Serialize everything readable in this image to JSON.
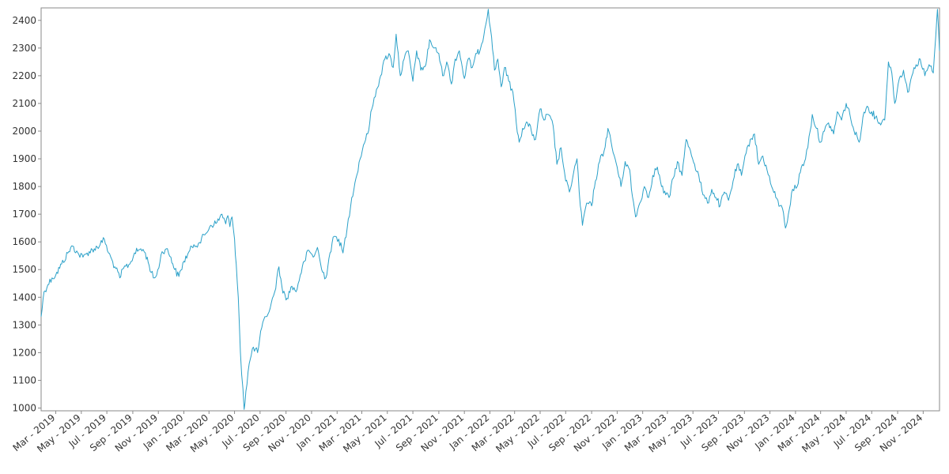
{
  "chart_data": {
    "type": "line",
    "title": "",
    "xlabel": "",
    "ylabel": "",
    "x_axis": {
      "type": "date",
      "range": [
        "2019-01-25",
        "2024-12-10"
      ],
      "tick_dates": [
        "2019-03-01",
        "2019-05-01",
        "2019-07-01",
        "2019-09-01",
        "2019-11-01",
        "2020-01-01",
        "2020-03-01",
        "2020-05-01",
        "2020-07-01",
        "2020-09-01",
        "2020-11-01",
        "2021-01-01",
        "2021-03-01",
        "2021-05-01",
        "2021-07-01",
        "2021-09-01",
        "2021-11-01",
        "2022-01-01",
        "2022-03-01",
        "2022-05-01",
        "2022-07-01",
        "2022-09-01",
        "2022-11-01",
        "2023-01-01",
        "2023-03-01",
        "2023-05-01",
        "2023-07-01",
        "2023-09-01",
        "2023-11-01",
        "2024-01-01",
        "2024-03-01",
        "2024-05-01",
        "2024-07-01",
        "2024-09-01",
        "2024-11-01"
      ],
      "tick_labels": [
        "Mar - 2019",
        "May - 2019",
        "Jul - 2019",
        "Sep - 2019",
        "Nov - 2019",
        "Jan - 2020",
        "Mar - 2020",
        "May - 2020",
        "Jul - 2020",
        "Sep - 2020",
        "Nov - 2020",
        "Jan - 2021",
        "Mar - 2021",
        "May - 2021",
        "Jul - 2021",
        "Sep - 2021",
        "Nov - 2021",
        "Jan - 2022",
        "Mar - 2022",
        "May - 2022",
        "Jul - 2022",
        "Sep - 2022",
        "Nov - 2022",
        "Jan - 2023",
        "Mar - 2023",
        "May - 2023",
        "Jul - 2023",
        "Sep - 2023",
        "Nov - 2023",
        "Jan - 2024",
        "Mar - 2024",
        "May - 2024",
        "Jul - 2024",
        "Sep - 2024",
        "Nov - 2024"
      ]
    },
    "y_axis": {
      "range": [
        990,
        2445
      ],
      "ticks": [
        1000,
        1100,
        1200,
        1300,
        1400,
        1500,
        1600,
        1700,
        1800,
        1900,
        2000,
        2100,
        2200,
        2300,
        2400
      ],
      "tick_labels": [
        "1000",
        "1100",
        "1200",
        "1300",
        "1400",
        "1500",
        "1600",
        "1700",
        "1800",
        "1900",
        "2000",
        "2100",
        "2200",
        "2300",
        "2400"
      ]
    },
    "grid": false,
    "legend": "none",
    "line_color": "#2aa0c8",
    "series": [
      {
        "points": [
          [
            "2019-01-25",
            1330
          ],
          [
            "2019-02-01",
            1420
          ],
          [
            "2019-02-10",
            1445
          ],
          [
            "2019-02-20",
            1470
          ],
          [
            "2019-03-01",
            1480
          ],
          [
            "2019-03-15",
            1520
          ],
          [
            "2019-04-01",
            1565
          ],
          [
            "2019-04-10",
            1585
          ],
          [
            "2019-04-25",
            1555
          ],
          [
            "2019-05-05",
            1545
          ],
          [
            "2019-05-15",
            1560
          ],
          [
            "2019-06-01",
            1575
          ],
          [
            "2019-06-15",
            1590
          ],
          [
            "2019-06-25",
            1610
          ],
          [
            "2019-07-05",
            1560
          ],
          [
            "2019-07-20",
            1510
          ],
          [
            "2019-08-01",
            1470
          ],
          [
            "2019-08-10",
            1505
          ],
          [
            "2019-08-25",
            1520
          ],
          [
            "2019-09-05",
            1560
          ],
          [
            "2019-09-20",
            1575
          ],
          [
            "2019-10-01",
            1560
          ],
          [
            "2019-10-10",
            1515
          ],
          [
            "2019-10-20",
            1470
          ],
          [
            "2019-10-28",
            1480
          ],
          [
            "2019-11-10",
            1565
          ],
          [
            "2019-11-20",
            1575
          ],
          [
            "2019-12-01",
            1545
          ],
          [
            "2019-12-10",
            1500
          ],
          [
            "2019-12-20",
            1475
          ],
          [
            "2020-01-01",
            1530
          ],
          [
            "2020-01-10",
            1555
          ],
          [
            "2020-01-25",
            1590
          ],
          [
            "2020-02-05",
            1595
          ],
          [
            "2020-02-20",
            1625
          ],
          [
            "2020-03-05",
            1660
          ],
          [
            "2020-03-20",
            1670
          ],
          [
            "2020-04-01",
            1700
          ],
          [
            "2020-04-10",
            1665
          ],
          [
            "2020-04-15",
            1695
          ],
          [
            "2020-04-20",
            1655
          ],
          [
            "2020-04-25",
            1690
          ],
          [
            "2020-05-01",
            1610
          ],
          [
            "2020-05-05",
            1520
          ],
          [
            "2020-05-10",
            1400
          ],
          [
            "2020-05-15",
            1200
          ],
          [
            "2020-05-18",
            1120
          ],
          [
            "2020-05-21",
            1070
          ],
          [
            "2020-05-24",
            995
          ],
          [
            "2020-05-28",
            1060
          ],
          [
            "2020-06-05",
            1160
          ],
          [
            "2020-06-15",
            1220
          ],
          [
            "2020-06-25",
            1200
          ],
          [
            "2020-07-05",
            1290
          ],
          [
            "2020-07-15",
            1330
          ],
          [
            "2020-07-25",
            1360
          ],
          [
            "2020-08-05",
            1420
          ],
          [
            "2020-08-15",
            1510
          ],
          [
            "2020-08-22",
            1440
          ],
          [
            "2020-09-01",
            1390
          ],
          [
            "2020-09-15",
            1440
          ],
          [
            "2020-09-25",
            1420
          ],
          [
            "2020-10-05",
            1480
          ],
          [
            "2020-10-15",
            1530
          ],
          [
            "2020-10-25",
            1570
          ],
          [
            "2020-11-05",
            1545
          ],
          [
            "2020-11-15",
            1580
          ],
          [
            "2020-11-25",
            1500
          ],
          [
            "2020-12-05",
            1470
          ],
          [
            "2020-12-15",
            1560
          ],
          [
            "2020-12-25",
            1620
          ],
          [
            "2021-01-05",
            1610
          ],
          [
            "2021-01-15",
            1560
          ],
          [
            "2021-01-25",
            1650
          ],
          [
            "2021-02-05",
            1760
          ],
          [
            "2021-02-15",
            1830
          ],
          [
            "2021-02-25",
            1900
          ],
          [
            "2021-03-05",
            1950
          ],
          [
            "2021-03-15",
            1990
          ],
          [
            "2021-03-25",
            2080
          ],
          [
            "2021-04-05",
            2150
          ],
          [
            "2021-04-15",
            2200
          ],
          [
            "2021-04-25",
            2260
          ],
          [
            "2021-05-05",
            2280
          ],
          [
            "2021-05-15",
            2230
          ],
          [
            "2021-05-22",
            2350
          ],
          [
            "2021-06-01",
            2200
          ],
          [
            "2021-06-10",
            2260
          ],
          [
            "2021-06-20",
            2290
          ],
          [
            "2021-07-01",
            2180
          ],
          [
            "2021-07-10",
            2290
          ],
          [
            "2021-07-20",
            2220
          ],
          [
            "2021-08-01",
            2240
          ],
          [
            "2021-08-10",
            2330
          ],
          [
            "2021-08-20",
            2300
          ],
          [
            "2021-09-01",
            2280
          ],
          [
            "2021-09-10",
            2200
          ],
          [
            "2021-09-20",
            2250
          ],
          [
            "2021-10-01",
            2170
          ],
          [
            "2021-10-10",
            2260
          ],
          [
            "2021-10-20",
            2290
          ],
          [
            "2021-11-01",
            2190
          ],
          [
            "2021-11-10",
            2260
          ],
          [
            "2021-11-20",
            2230
          ],
          [
            "2021-12-01",
            2280
          ],
          [
            "2021-12-10",
            2300
          ],
          [
            "2021-12-20",
            2370
          ],
          [
            "2021-12-28",
            2440
          ],
          [
            "2022-01-05",
            2340
          ],
          [
            "2022-01-12",
            2220
          ],
          [
            "2022-01-20",
            2260
          ],
          [
            "2022-01-28",
            2160
          ],
          [
            "2022-02-05",
            2230
          ],
          [
            "2022-02-15",
            2180
          ],
          [
            "2022-02-25",
            2140
          ],
          [
            "2022-03-05",
            2030
          ],
          [
            "2022-03-12",
            1960
          ],
          [
            "2022-03-20",
            2010
          ],
          [
            "2022-04-01",
            2030
          ],
          [
            "2022-04-10",
            2000
          ],
          [
            "2022-04-20",
            1970
          ],
          [
            "2022-05-01",
            2080
          ],
          [
            "2022-05-10",
            2040
          ],
          [
            "2022-05-20",
            2060
          ],
          [
            "2022-06-01",
            2020
          ],
          [
            "2022-06-10",
            1880
          ],
          [
            "2022-06-20",
            1940
          ],
          [
            "2022-07-01",
            1820
          ],
          [
            "2022-07-10",
            1780
          ],
          [
            "2022-07-20",
            1850
          ],
          [
            "2022-07-28",
            1900
          ],
          [
            "2022-08-05",
            1730
          ],
          [
            "2022-08-10",
            1660
          ],
          [
            "2022-08-20",
            1740
          ],
          [
            "2022-09-01",
            1730
          ],
          [
            "2022-09-10",
            1820
          ],
          [
            "2022-09-20",
            1890
          ],
          [
            "2022-10-01",
            1930
          ],
          [
            "2022-10-10",
            2010
          ],
          [
            "2022-10-20",
            1940
          ],
          [
            "2022-11-01",
            1870
          ],
          [
            "2022-11-10",
            1800
          ],
          [
            "2022-11-20",
            1890
          ],
          [
            "2022-12-01",
            1860
          ],
          [
            "2022-12-05",
            1790
          ],
          [
            "2022-12-15",
            1690
          ],
          [
            "2022-12-25",
            1740
          ],
          [
            "2023-01-05",
            1800
          ],
          [
            "2023-01-15",
            1760
          ],
          [
            "2023-01-25",
            1840
          ],
          [
            "2023-02-05",
            1870
          ],
          [
            "2023-02-15",
            1800
          ],
          [
            "2023-02-25",
            1770
          ],
          [
            "2023-03-05",
            1760
          ],
          [
            "2023-03-15",
            1830
          ],
          [
            "2023-03-25",
            1890
          ],
          [
            "2023-04-05",
            1840
          ],
          [
            "2023-04-15",
            1970
          ],
          [
            "2023-04-25",
            1930
          ],
          [
            "2023-05-05",
            1880
          ],
          [
            "2023-05-15",
            1840
          ],
          [
            "2023-05-25",
            1770
          ],
          [
            "2023-06-05",
            1740
          ],
          [
            "2023-06-15",
            1790
          ],
          [
            "2023-06-25",
            1760
          ],
          [
            "2023-07-05",
            1730
          ],
          [
            "2023-07-15",
            1780
          ],
          [
            "2023-07-25",
            1750
          ],
          [
            "2023-08-05",
            1820
          ],
          [
            "2023-08-15",
            1880
          ],
          [
            "2023-08-25",
            1840
          ],
          [
            "2023-09-05",
            1920
          ],
          [
            "2023-09-15",
            1970
          ],
          [
            "2023-09-25",
            1990
          ],
          [
            "2023-10-05",
            1880
          ],
          [
            "2023-10-15",
            1910
          ],
          [
            "2023-10-25",
            1860
          ],
          [
            "2023-11-05",
            1800
          ],
          [
            "2023-11-15",
            1760
          ],
          [
            "2023-11-25",
            1730
          ],
          [
            "2023-12-01",
            1720
          ],
          [
            "2023-12-08",
            1650
          ],
          [
            "2023-12-15",
            1700
          ],
          [
            "2023-12-25",
            1790
          ],
          [
            "2024-01-05",
            1800
          ],
          [
            "2024-01-15",
            1870
          ],
          [
            "2024-01-25",
            1900
          ],
          [
            "2024-02-05",
            2000
          ],
          [
            "2024-02-10",
            2060
          ],
          [
            "2024-02-20",
            2010
          ],
          [
            "2024-03-01",
            1960
          ],
          [
            "2024-03-10",
            2000
          ],
          [
            "2024-03-20",
            2030
          ],
          [
            "2024-04-01",
            1990
          ],
          [
            "2024-04-10",
            2070
          ],
          [
            "2024-04-20",
            2040
          ],
          [
            "2024-05-01",
            2100
          ],
          [
            "2024-05-10",
            2060
          ],
          [
            "2024-05-20",
            2000
          ],
          [
            "2024-06-01",
            1960
          ],
          [
            "2024-06-10",
            2050
          ],
          [
            "2024-06-20",
            2090
          ],
          [
            "2024-07-01",
            2070
          ],
          [
            "2024-07-10",
            2050
          ],
          [
            "2024-07-20",
            2030
          ],
          [
            "2024-08-01",
            2040
          ],
          [
            "2024-08-10",
            2250
          ],
          [
            "2024-08-18",
            2210
          ],
          [
            "2024-08-25",
            2100
          ],
          [
            "2024-09-05",
            2190
          ],
          [
            "2024-09-15",
            2220
          ],
          [
            "2024-09-25",
            2140
          ],
          [
            "2024-10-05",
            2200
          ],
          [
            "2024-10-15",
            2240
          ],
          [
            "2024-10-25",
            2260
          ],
          [
            "2024-11-05",
            2200
          ],
          [
            "2024-11-15",
            2240
          ],
          [
            "2024-11-25",
            2210
          ],
          [
            "2024-12-01",
            2340
          ],
          [
            "2024-12-05",
            2440
          ],
          [
            "2024-12-10",
            2290
          ]
        ]
      }
    ]
  }
}
